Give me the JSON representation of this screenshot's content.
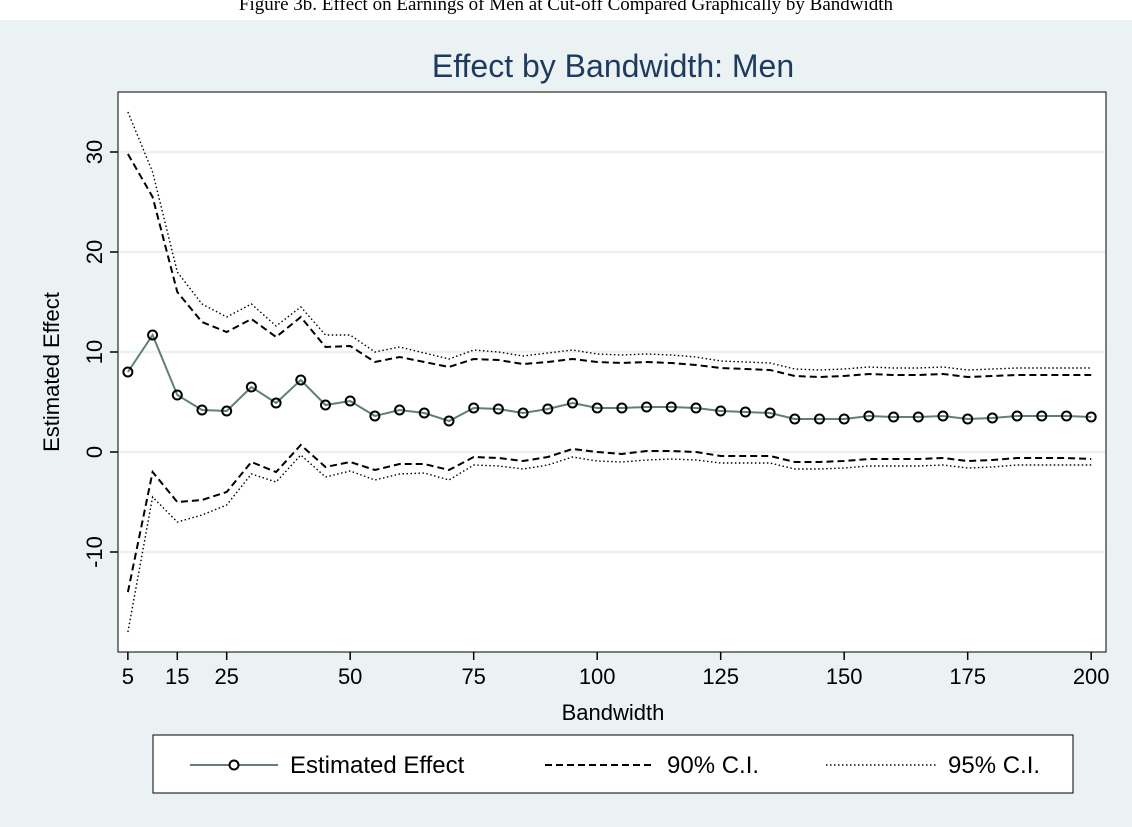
{
  "caption": "Figure 3b. Effect on Earnings of Men at Cut-off Compared Graphically by Bandwidth",
  "colors": {
    "background": "#eaf2f3",
    "plot_background": "#ffffff",
    "grid": "#eaf2f3",
    "title": "#1e3a5f",
    "estimate": "#5f7f7a",
    "ci": "#000000"
  },
  "chart_data": {
    "type": "line",
    "title": "Effect by Bandwidth: Men",
    "xlabel": "Bandwidth",
    "ylabel": "Estimated Effect",
    "xlim": [
      3,
      203
    ],
    "ylim": [
      -20,
      36
    ],
    "x_ticks": [
      5,
      15,
      25,
      50,
      75,
      100,
      125,
      150,
      175,
      200
    ],
    "y_ticks": [
      -10,
      0,
      10,
      20,
      30
    ],
    "grid": true,
    "legend_position": "bottom",
    "x": [
      5,
      10,
      15,
      20,
      25,
      30,
      35,
      40,
      45,
      50,
      55,
      60,
      65,
      70,
      75,
      80,
      85,
      90,
      95,
      100,
      105,
      110,
      115,
      120,
      125,
      130,
      135,
      140,
      145,
      150,
      155,
      160,
      165,
      170,
      175,
      180,
      185,
      190,
      195,
      200
    ],
    "series": [
      {
        "name": "Estimated Effect",
        "style": "solid-circles",
        "values": [
          8.0,
          11.7,
          5.7,
          4.2,
          4.1,
          6.5,
          4.9,
          7.2,
          4.7,
          5.1,
          3.6,
          4.2,
          3.9,
          3.1,
          4.4,
          4.3,
          3.9,
          4.3,
          4.9,
          4.4,
          4.4,
          4.5,
          4.5,
          4.4,
          4.1,
          4.0,
          3.9,
          3.3,
          3.3,
          3.3,
          3.6,
          3.5,
          3.5,
          3.6,
          3.3,
          3.4,
          3.6,
          3.6,
          3.6,
          3.5
        ]
      },
      {
        "name": "90% C.I.",
        "style": "dashed",
        "values": [
          29.8,
          25.5,
          16.0,
          13.0,
          12.0,
          13.3,
          11.5,
          13.5,
          10.5,
          10.6,
          9.0,
          9.5,
          9.0,
          8.5,
          9.3,
          9.2,
          8.8,
          9.0,
          9.3,
          9.0,
          8.9,
          9.0,
          8.9,
          8.7,
          8.4,
          8.3,
          8.2,
          7.6,
          7.5,
          7.6,
          7.8,
          7.7,
          7.7,
          7.8,
          7.5,
          7.6,
          7.7,
          7.7,
          7.7,
          7.7
        ]
      },
      {
        "name": "90% C.I. lower",
        "style": "dashed",
        "values": [
          -14.0,
          -2.0,
          -5.0,
          -4.8,
          -4.0,
          -1.0,
          -2.0,
          0.7,
          -1.5,
          -1.0,
          -1.8,
          -1.2,
          -1.2,
          -1.8,
          -0.5,
          -0.6,
          -0.9,
          -0.5,
          0.3,
          0.0,
          -0.2,
          0.1,
          0.1,
          0.0,
          -0.4,
          -0.4,
          -0.4,
          -1.0,
          -1.0,
          -0.9,
          -0.7,
          -0.7,
          -0.7,
          -0.6,
          -0.9,
          -0.8,
          -0.6,
          -0.6,
          -0.6,
          -0.7
        ]
      },
      {
        "name": "95% C.I.",
        "style": "dotted",
        "values": [
          34.0,
          28.0,
          18.0,
          14.8,
          13.5,
          14.8,
          12.6,
          14.5,
          11.7,
          11.7,
          10.0,
          10.5,
          9.9,
          9.3,
          10.2,
          10.0,
          9.6,
          9.9,
          10.2,
          9.8,
          9.7,
          9.8,
          9.7,
          9.5,
          9.1,
          9.0,
          8.9,
          8.3,
          8.2,
          8.3,
          8.5,
          8.4,
          8.4,
          8.5,
          8.2,
          8.3,
          8.4,
          8.4,
          8.4,
          8.4
        ]
      },
      {
        "name": "95% C.I. lower",
        "style": "dotted",
        "values": [
          -18.0,
          -4.5,
          -7.0,
          -6.3,
          -5.3,
          -2.2,
          -3.0,
          -0.3,
          -2.5,
          -1.9,
          -2.8,
          -2.2,
          -2.1,
          -2.8,
          -1.3,
          -1.4,
          -1.7,
          -1.3,
          -0.5,
          -0.9,
          -1.0,
          -0.8,
          -0.7,
          -0.8,
          -1.1,
          -1.1,
          -1.1,
          -1.7,
          -1.7,
          -1.6,
          -1.4,
          -1.4,
          -1.4,
          -1.3,
          -1.6,
          -1.5,
          -1.3,
          -1.3,
          -1.3,
          -1.3
        ]
      }
    ],
    "legend": [
      {
        "label": "Estimated Effect",
        "style": "solid-circles"
      },
      {
        "label": "90% C.I.",
        "style": "dashed"
      },
      {
        "label": "95% C.I.",
        "style": "dotted"
      }
    ]
  }
}
